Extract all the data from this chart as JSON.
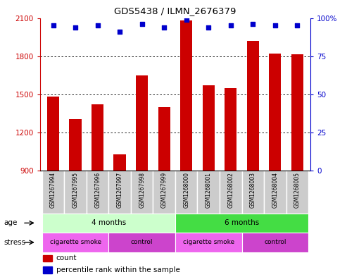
{
  "title": "GDS5438 / ILMN_2676379",
  "samples": [
    "GSM1267994",
    "GSM1267995",
    "GSM1267996",
    "GSM1267997",
    "GSM1267998",
    "GSM1267999",
    "GSM1268000",
    "GSM1268001",
    "GSM1268002",
    "GSM1268003",
    "GSM1268004",
    "GSM1268005"
  ],
  "counts": [
    1480,
    1305,
    1420,
    1025,
    1650,
    1400,
    2080,
    1570,
    1550,
    1920,
    1820,
    1815
  ],
  "percentiles": [
    95,
    94,
    95,
    91,
    96,
    94,
    99,
    94,
    95,
    96,
    95,
    95
  ],
  "ylim_left": [
    900,
    2100
  ],
  "ylim_right": [
    0,
    100
  ],
  "yticks_left": [
    900,
    1200,
    1500,
    1800,
    2100
  ],
  "yticks_right": [
    0,
    25,
    50,
    75,
    100
  ],
  "bar_color": "#cc0000",
  "dot_color": "#0000cc",
  "age_groups": [
    {
      "label": "4 months",
      "start": 0,
      "end": 6,
      "color": "#ccffcc"
    },
    {
      "label": "6 months",
      "start": 6,
      "end": 12,
      "color": "#44dd44"
    }
  ],
  "stress_groups": [
    {
      "label": "cigarette smoke",
      "start": 0,
      "end": 3,
      "color": "#ee66ee"
    },
    {
      "label": "control",
      "start": 3,
      "end": 6,
      "color": "#cc44cc"
    },
    {
      "label": "cigarette smoke",
      "start": 6,
      "end": 9,
      "color": "#ee66ee"
    },
    {
      "label": "control",
      "start": 9,
      "end": 12,
      "color": "#cc44cc"
    }
  ],
  "legend_count_color": "#cc0000",
  "legend_dot_color": "#0000cc",
  "bar_width": 0.55,
  "sample_box_color": "#cccccc",
  "fig_bg": "#ffffff"
}
